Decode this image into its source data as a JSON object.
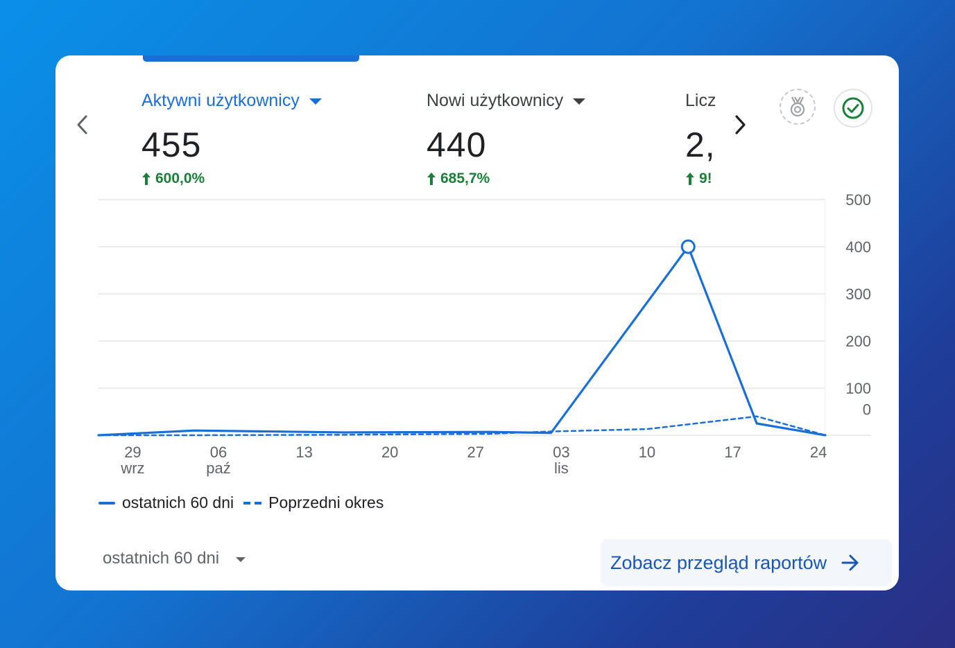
{
  "metrics": [
    {
      "label": "Aktywni użytkownicy",
      "value": "455",
      "change": "600,0%",
      "active": true
    },
    {
      "label": "Nowi użytkownicy",
      "value": "440",
      "change": "685,7%",
      "active": false
    },
    {
      "label": "Licz",
      "value": "2,",
      "change": "9!",
      "active": false
    }
  ],
  "icons": {
    "prev": "chevron-left-icon",
    "next": "chevron-right-icon",
    "badge": "medal-badge-icon",
    "check": "check-circle-icon",
    "arrow_up": "arrow-up-icon",
    "report_arrow": "arrow-right-icon"
  },
  "colors": {
    "accent": "#1a6fd6",
    "positive": "#188038",
    "check": "#188038"
  },
  "chart_data": {
    "type": "line",
    "x_ticks": [
      {
        "day": "29",
        "month": "wrz"
      },
      {
        "day": "06",
        "month": "paź"
      },
      {
        "day": "13",
        "month": ""
      },
      {
        "day": "20",
        "month": ""
      },
      {
        "day": "27",
        "month": ""
      },
      {
        "day": "03",
        "month": "lis"
      },
      {
        "day": "10",
        "month": ""
      },
      {
        "day": "17",
        "month": ""
      },
      {
        "day": "24",
        "month": ""
      }
    ],
    "y_ticks": [
      "500",
      "400",
      "300",
      "200",
      "100",
      "0"
    ],
    "ylim": [
      0,
      500
    ],
    "series": [
      {
        "name": "ostatnich 60 dni",
        "style": "solid",
        "points": [
          [
            0,
            0
          ],
          [
            1.4,
            10
          ],
          [
            3.6,
            6
          ],
          [
            5.7,
            7
          ],
          [
            6.6,
            5
          ],
          [
            8.6,
            400
          ],
          [
            9.6,
            25
          ],
          [
            10.6,
            0
          ]
        ]
      },
      {
        "name": "Poprzedni okres",
        "style": "dashed",
        "points": [
          [
            0,
            0
          ],
          [
            1.4,
            0
          ],
          [
            3.6,
            1
          ],
          [
            5.7,
            3
          ],
          [
            6.6,
            8
          ],
          [
            8.0,
            13
          ],
          [
            9.6,
            40
          ],
          [
            10.6,
            0
          ]
        ]
      }
    ],
    "highlight_point": {
      "series": 0,
      "index": 5
    },
    "grid": true
  },
  "legend": {
    "current": "ostatnich 60 dni",
    "previous": "Poprzedni okres"
  },
  "period_select": {
    "value": "ostatnich 60 dni"
  },
  "report_link": {
    "label": "Zobacz przegląd raportów"
  }
}
